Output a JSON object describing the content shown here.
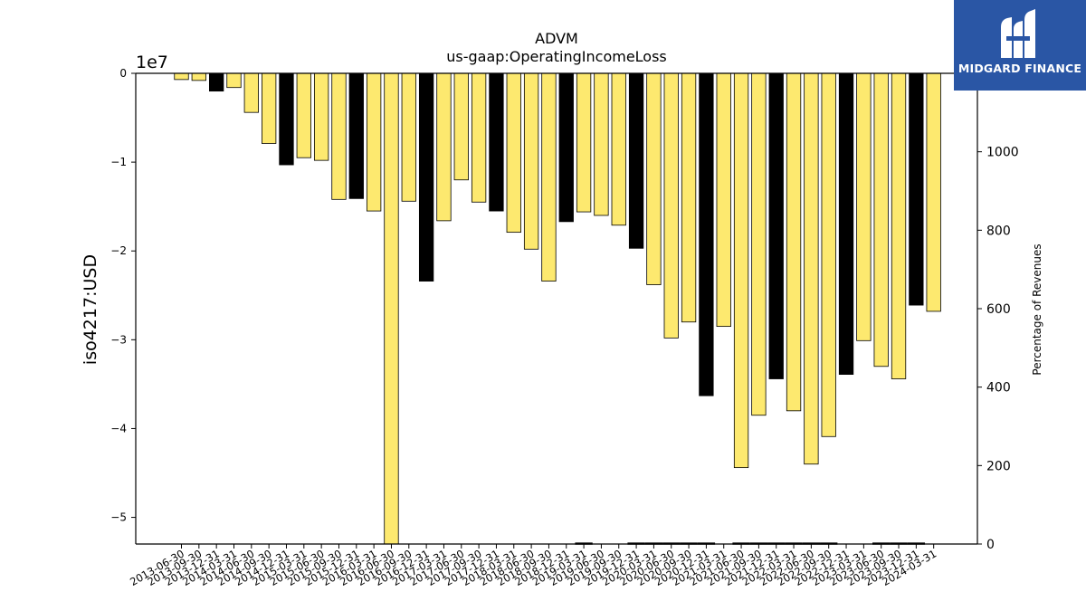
{
  "chart_data": {
    "type": "bar",
    "title": "ADVM",
    "subtitle": "us-gaap:OperatingIncomeLoss",
    "ylabel": "iso4217:USD",
    "y2label": "Percentage of Revenues",
    "y_offset_text": "1e7",
    "ylim": [
      -53000000,
      0
    ],
    "y_ticks": [
      0,
      -10000000,
      -20000000,
      -30000000,
      -40000000,
      -50000000
    ],
    "y_tick_labels": [
      "0",
      "−1",
      "−2",
      "−3",
      "−4",
      "−5"
    ],
    "y2lim": [
      0,
      1200
    ],
    "y2_ticks": [
      0,
      200,
      400,
      600,
      800,
      1000
    ],
    "y2_tick_labels": [
      "0",
      "200",
      "400",
      "600",
      "800",
      "1000"
    ],
    "bar_color": "#fde96f",
    "highlight_color": "#000000",
    "categories": [
      "2013-06-30",
      "2013-09-30",
      "2013-12-31",
      "2014-03-31",
      "2014-06-30",
      "2014-09-30",
      "2014-12-31",
      "2015-03-31",
      "2015-06-30",
      "2015-09-30",
      "2015-12-31",
      "2016-03-31",
      "2016-06-30",
      "2016-09-30",
      "2016-12-31",
      "2017-03-31",
      "2017-06-30",
      "2017-09-30",
      "2017-12-31",
      "2018-03-31",
      "2018-06-30",
      "2018-09-30",
      "2018-12-31",
      "2019-03-31",
      "2019-06-30",
      "2019-09-30",
      "2019-12-31",
      "2020-03-31",
      "2020-06-30",
      "2020-09-30",
      "2020-12-31",
      "2021-03-31",
      "2021-06-30",
      "2021-09-30",
      "2021-12-31",
      "2022-03-31",
      "2022-06-30",
      "2022-09-30",
      "2022-12-31",
      "2023-03-31",
      "2023-06-30",
      "2023-09-30",
      "2023-12-31",
      "2024-03-31"
    ],
    "values": [
      -700000,
      -800000,
      -2000000,
      -1600000,
      -4400000,
      -7900000,
      -10300000,
      -9500000,
      -9800000,
      -14200000,
      -14100000,
      -15500000,
      -53000000,
      -14400000,
      -23400000,
      -16600000,
      -12000000,
      -14500000,
      -15500000,
      -17900000,
      -19800000,
      -23400000,
      -16700000,
      -15600000,
      -16000000,
      -17100000,
      -19700000,
      -23800000,
      -29800000,
      -28000000,
      -36300000,
      -28500000,
      -44400000,
      -38500000,
      -34400000,
      -38000000,
      -44000000,
      -40900000,
      -33900000,
      -30100000,
      -33000000,
      -34400000,
      -26100000,
      -26800000
    ],
    "highlight": [
      false,
      false,
      true,
      false,
      false,
      false,
      true,
      false,
      false,
      false,
      true,
      false,
      false,
      false,
      true,
      false,
      false,
      false,
      true,
      false,
      false,
      false,
      true,
      false,
      false,
      false,
      true,
      false,
      false,
      false,
      true,
      false,
      false,
      false,
      true,
      false,
      false,
      false,
      true,
      false,
      false,
      false,
      true,
      false
    ],
    "percentage_of_revenues": [
      null,
      null,
      null,
      null,
      null,
      null,
      null,
      null,
      null,
      null,
      null,
      null,
      null,
      null,
      null,
      null,
      null,
      null,
      null,
      null,
      null,
      null,
      null,
      1,
      null,
      null,
      1,
      1,
      1,
      1,
      1,
      null,
      1,
      1,
      1,
      1,
      1,
      1,
      null,
      null,
      1,
      1,
      1,
      null
    ]
  },
  "logo": {
    "text": "MIDGARD FINANCE"
  }
}
